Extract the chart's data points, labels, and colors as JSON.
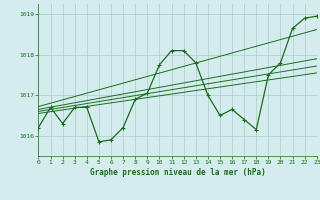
{
  "bg_color": "#d4ecee",
  "plot_bg_color": "#d4ecee",
  "grid_color": "#aacccc",
  "line_color": "#1a6e1a",
  "title": "Graphe pression niveau de la mer (hPa)",
  "xlim": [
    0,
    23
  ],
  "ylim": [
    1015.5,
    1019.25
  ],
  "yticks": [
    1016,
    1017,
    1018,
    1019
  ],
  "xticks": [
    0,
    1,
    2,
    3,
    4,
    5,
    6,
    7,
    8,
    9,
    10,
    11,
    12,
    13,
    14,
    15,
    16,
    17,
    18,
    19,
    20,
    21,
    22,
    23
  ],
  "main_series_x": [
    0,
    1,
    2,
    3,
    4,
    5,
    6,
    7,
    8,
    9,
    10,
    11,
    12,
    13,
    14,
    15,
    16,
    17,
    18,
    19,
    20,
    21,
    22,
    23
  ],
  "main_series_y": [
    1016.2,
    1016.7,
    1016.3,
    1016.7,
    1016.7,
    1015.85,
    1015.9,
    1016.2,
    1016.9,
    1017.05,
    1017.75,
    1018.1,
    1018.1,
    1017.8,
    1017.0,
    1016.5,
    1016.65,
    1016.4,
    1016.15,
    1017.5,
    1017.8,
    1018.65,
    1018.9,
    1018.95
  ],
  "trends": [
    {
      "x": [
        0,
        23
      ],
      "y": [
        1016.55,
        1017.55
      ]
    },
    {
      "x": [
        0,
        23
      ],
      "y": [
        1016.6,
        1017.72
      ]
    },
    {
      "x": [
        0,
        23
      ],
      "y": [
        1016.65,
        1017.9
      ]
    },
    {
      "x": [
        0,
        23
      ],
      "y": [
        1016.72,
        1018.62
      ]
    }
  ]
}
